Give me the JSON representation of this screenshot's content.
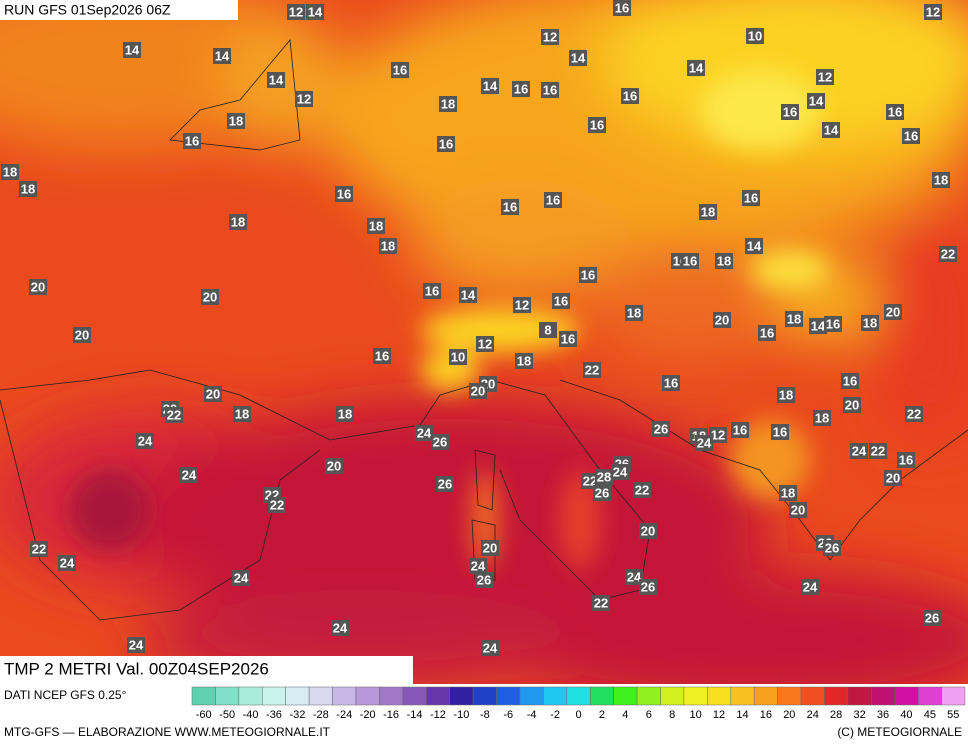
{
  "header": {
    "run": "RUN GFS 01Sep2026 06Z"
  },
  "map": {
    "labels": [
      12,
      14,
      16,
      12,
      14,
      14,
      12,
      14,
      10,
      16,
      14,
      14,
      12,
      12,
      14,
      16,
      18,
      16,
      16,
      14,
      16,
      16,
      18,
      16,
      14,
      16,
      16,
      16,
      18,
      18,
      18,
      16,
      16,
      16,
      16,
      18,
      18,
      18,
      14,
      18,
      22,
      16,
      16,
      18,
      16,
      20,
      20,
      16,
      14,
      12,
      16,
      18,
      20,
      18,
      20,
      14,
      16,
      18,
      16,
      20,
      8,
      12,
      16,
      16,
      10,
      18,
      22,
      20,
      20,
      16,
      16,
      20,
      18,
      20,
      22,
      18,
      18,
      20,
      22,
      18,
      24,
      26,
      26,
      18,
      12,
      16,
      16,
      24,
      24,
      24,
      22,
      16,
      20,
      26,
      24,
      24,
      26,
      20,
      22,
      28,
      26,
      22,
      22,
      22,
      18,
      20,
      20,
      26,
      26,
      22,
      20,
      24,
      24,
      26,
      24,
      24,
      26,
      24,
      22,
      26,
      24,
      24,
      24
    ]
  },
  "footer": {
    "title": "TMP 2 METRI Val. 00Z04SEP2026",
    "source": "DATI NCEP GFS 0.25°",
    "credit": "MTG-GFS — ELABORAZIONE WWW.METEOGIORNALE.IT",
    "copyright": "(C) METEOGIORNALE"
  },
  "scale": {
    "ticks": [
      -60,
      -50,
      -40,
      -36,
      -32,
      -28,
      -24,
      -20,
      -16,
      -14,
      -12,
      -10,
      -8,
      -6,
      -4,
      -2,
      0,
      2,
      4,
      6,
      8,
      10,
      12,
      14,
      16,
      20,
      24,
      28,
      32,
      36,
      40,
      45,
      55
    ],
    "colors": [
      "#5fd0b0",
      "#80e0c8",
      "#a8ecdc",
      "#c8f4ec",
      "#d8ecf4",
      "#d8d8f0",
      "#c8b8e8",
      "#b898d8",
      "#a078c8",
      "#8858b8",
      "#6838a8",
      "#3020a0",
      "#2040c8",
      "#2060e0",
      "#2098f0",
      "#20c8f0",
      "#20e0e0",
      "#20e060",
      "#40f020",
      "#90f020",
      "#d0f020",
      "#f0f020",
      "#f8e020",
      "#f8c020",
      "#f8a020",
      "#f87820",
      "#f05020",
      "#e02828",
      "#c01840",
      "#c01070",
      "#d010a0",
      "#e040d0",
      "#f0a0f0"
    ]
  }
}
